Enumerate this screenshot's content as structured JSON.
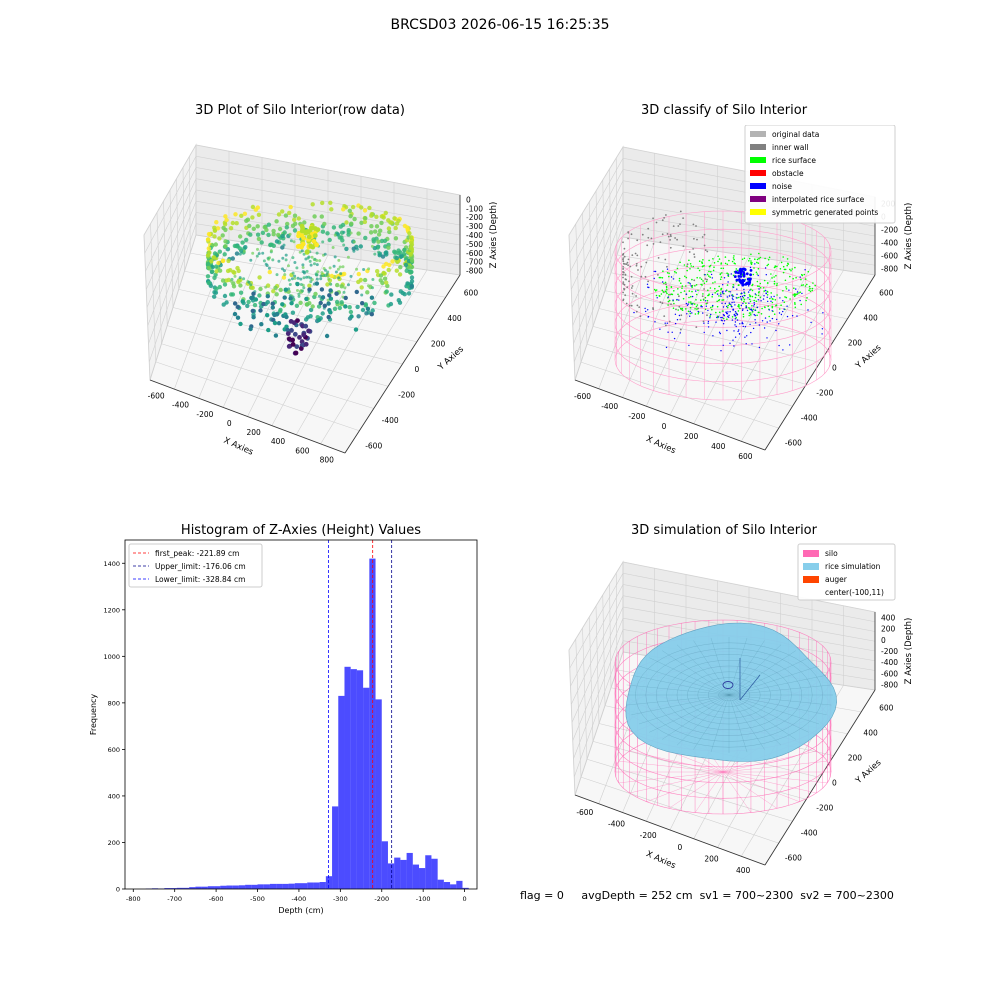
{
  "suptitle": "BRCSD03 2026-06-15 16:25:35",
  "footer": {
    "flag": "flag = 0",
    "avg": "avgDepth = 252 cm",
    "sv1": "sv1 = 700~2300",
    "sv2": "sv2 = 700~2300"
  },
  "chart_data": [
    {
      "type": "scatter",
      "title": "3D Plot of Silo Interior(row data)",
      "xlabel": "X Axies",
      "ylabel": "Y Axies",
      "zlabel": "Z Axies (Depth)",
      "x_ticks": [
        "-600",
        "-400",
        "-200",
        "0",
        "200",
        "400",
        "600",
        "800"
      ],
      "y_ticks": [
        "-600",
        "-400",
        "-200",
        "0",
        "200",
        "400",
        "600"
      ],
      "z_ticks": [
        "0",
        "-100",
        "-200",
        "-300",
        "-400",
        "-500",
        "-600",
        "-700",
        "-800"
      ],
      "colormap": "viridis",
      "grid": true
    },
    {
      "type": "scatter",
      "title": "3D classify of Silo Interior",
      "xlabel": "X Axies",
      "ylabel": "Y Axies",
      "zlabel": "Z Axies (Depth)",
      "x_ticks": [
        "-600",
        "-400",
        "-200",
        "0",
        "200",
        "400",
        "600"
      ],
      "y_ticks": [
        "-600",
        "-400",
        "-200",
        "0",
        "200",
        "400",
        "600"
      ],
      "z_ticks": [
        "200",
        "0",
        "-200",
        "-400",
        "-600",
        "-800"
      ],
      "legend_position": "top-right",
      "legend": [
        {
          "label": "original data",
          "color": "#b3b3b3"
        },
        {
          "label": "inner wall",
          "color": "#808080"
        },
        {
          "label": "rice surface",
          "color": "#00ff00"
        },
        {
          "label": "obstacle",
          "color": "#ff0000"
        },
        {
          "label": "noise",
          "color": "#0000ff"
        },
        {
          "label": "interpolated rice surface",
          "color": "#800080"
        },
        {
          "label": "symmetric generated points",
          "color": "#ffff00"
        }
      ],
      "grid": true
    },
    {
      "type": "bar",
      "title": "Histogram of Z-Axies (Height) Values",
      "xlabel": "Depth (cm)",
      "ylabel": "Frequency",
      "xlim": [
        -820,
        30
      ],
      "ylim": [
        0,
        1500
      ],
      "x_ticks": [
        "-800",
        "-700",
        "-600",
        "-500",
        "-400",
        "-300",
        "-200",
        "-100",
        "0"
      ],
      "y_ticks": [
        "0",
        "200",
        "400",
        "600",
        "800",
        "1000",
        "1200",
        "1400"
      ],
      "bin_width": 15,
      "bin_starts": [
        -770,
        -755,
        -740,
        -725,
        -710,
        -695,
        -680,
        -665,
        -650,
        -635,
        -620,
        -605,
        -590,
        -575,
        -560,
        -545,
        -530,
        -515,
        -500,
        -485,
        -470,
        -455,
        -440,
        -425,
        -410,
        -395,
        -380,
        -365,
        -350,
        -335,
        -320,
        -305,
        -290,
        -275,
        -260,
        -245,
        -230,
        -215,
        -200,
        -185,
        -170,
        -155,
        -140,
        -125,
        -110,
        -95,
        -80,
        -65,
        -50,
        -35,
        -20,
        -5
      ],
      "values": [
        2,
        3,
        2,
        4,
        4,
        5,
        5,
        8,
        10,
        10,
        12,
        12,
        14,
        15,
        15,
        16,
        18,
        18,
        20,
        20,
        22,
        22,
        22,
        23,
        25,
        25,
        28,
        28,
        30,
        55,
        355,
        830,
        955,
        945,
        940,
        865,
        1420,
        815,
        205,
        110,
        135,
        125,
        155,
        105,
        90,
        145,
        130,
        40,
        30,
        20,
        35,
        5
      ],
      "bar_color": "#0000ff",
      "lines": [
        {
          "label": "first_peak: -221.89 cm",
          "x": -221.89,
          "color": "#ff0000"
        },
        {
          "label": "Upper_limit: -176.06 cm",
          "x": -176.06,
          "color": "#00008b"
        },
        {
          "label": "Lower_limit: -328.84 cm",
          "x": -328.84,
          "color": "#0000ff"
        }
      ],
      "legend_position": "top-left"
    },
    {
      "type": "surface",
      "title": "3D simulation of Silo Interior",
      "xlabel": "X Axies",
      "ylabel": "Y Axies",
      "zlabel": "Z Axies (Depth)",
      "x_ticks": [
        "-600",
        "-400",
        "-200",
        "0",
        "200",
        "400"
      ],
      "y_ticks": [
        "-600",
        "-400",
        "-200",
        "0",
        "200",
        "400",
        "600"
      ],
      "z_ticks": [
        "400",
        "200",
        "0",
        "-200",
        "-400",
        "-600",
        "-800"
      ],
      "legend_position": "top-right",
      "legend": [
        {
          "label": "silo",
          "color": "#ff69b4"
        },
        {
          "label": "rice simulation",
          "color": "#87ceeb"
        },
        {
          "label": "auger",
          "color": "#ff4500"
        },
        {
          "label": "center(-100,11)",
          "color": ""
        }
      ],
      "grid": true
    }
  ]
}
